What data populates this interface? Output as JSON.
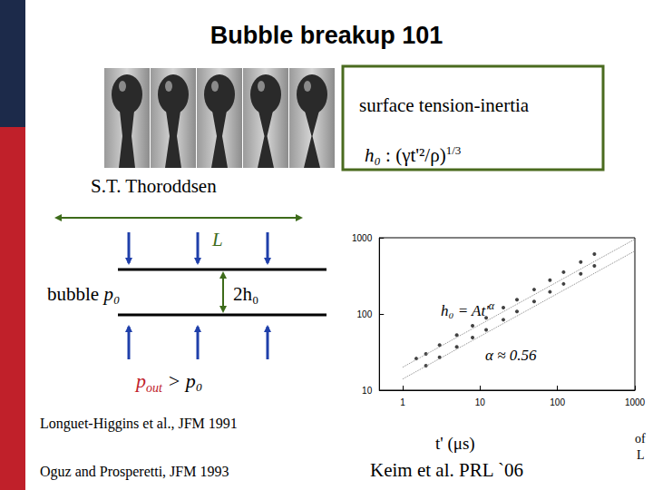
{
  "title": "Bubble breakup 101",
  "photo_credit": "S.T. Thoroddsen",
  "box": {
    "heading": "surface tension-inertia",
    "formula": {
      "lhs": "h₀",
      "sep": " : ",
      "body": "(γt'²/ρ)",
      "exponent": "1/3"
    }
  },
  "diagram": {
    "length_label": "L",
    "bubble_label": "bubble",
    "bubble_pressure": "p₀",
    "gap_label": "2h₀",
    "outer": {
      "symbol": "p",
      "subscript": "out",
      "relation": " > p₀"
    }
  },
  "references": [
    "Longuet-Higgins et al., JFM 1991",
    "Oguz and Prosperetti, JFM 1993"
  ],
  "edge_text": [
    "of",
    "L"
  ],
  "chart_data": {
    "type": "scatter",
    "log": true,
    "grid": false,
    "xlim": [
      0.5,
      1000
    ],
    "ylim": [
      10,
      1000
    ],
    "xticks": [
      1,
      10,
      100,
      1000
    ],
    "yticks": [
      10,
      100,
      1000
    ],
    "x_label": "t' (μs)",
    "citation": "Keim et al. PRL `06",
    "annotations": [
      {
        "text": "h₀ = At'",
        "superscript": "α"
      },
      {
        "text": "α ≈ 0.56"
      }
    ],
    "series": [
      {
        "type": "scatter",
        "color": "#111111",
        "marker": "circle",
        "x": [
          2,
          3,
          5,
          8,
          12,
          20,
          30,
          50,
          80,
          120,
          200,
          300
        ],
        "values": [
          21,
          27,
          37,
          49,
          62,
          84,
          108,
          146,
          195,
          248,
          336,
          428
        ]
      },
      {
        "type": "scatter",
        "color": "#111111",
        "marker": "circle",
        "x": [
          1.5,
          2,
          3,
          5,
          8,
          12,
          20,
          30,
          50,
          80,
          120,
          200,
          300
        ],
        "values": [
          26,
          30,
          39,
          53,
          70,
          89,
          121,
          154,
          209,
          278,
          354,
          480,
          612
        ]
      },
      {
        "type": "line",
        "color": "#888888",
        "line_style": "dotted",
        "x": [
          1,
          1000
        ],
        "values": [
          14,
          671
        ]
      },
      {
        "type": "line",
        "color": "#888888",
        "line_style": "dotted",
        "x": [
          1,
          1000
        ],
        "values": [
          20,
          958
        ]
      }
    ]
  }
}
